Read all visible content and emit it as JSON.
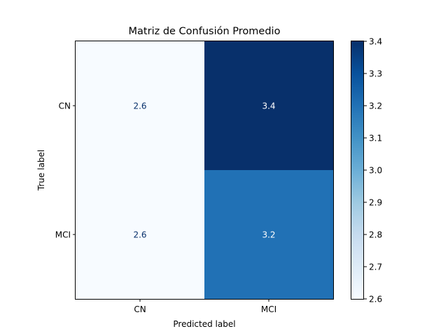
{
  "chart_data": {
    "type": "heatmap",
    "title": "Matriz de Confusión Promedio",
    "xlabel": "Predicted label",
    "ylabel": "True label",
    "x_categories": [
      "CN",
      "MCI"
    ],
    "y_categories": [
      "CN",
      "MCI"
    ],
    "values": [
      [
        2.6,
        3.4
      ],
      [
        2.6,
        3.2
      ]
    ],
    "value_labels": [
      [
        "2.6",
        "3.4"
      ],
      [
        "2.6",
        "3.2"
      ]
    ],
    "colorbar": {
      "min": 2.6,
      "max": 3.4,
      "ticks": [
        "2.6",
        "2.7",
        "2.8",
        "2.9",
        "3.0",
        "3.1",
        "3.2",
        "3.3",
        "3.4"
      ],
      "colormap": "Blues"
    },
    "colors": {
      "low": "#f7fbff",
      "high": "#08306b",
      "text_on_light": "#08306b",
      "text_on_dark": "#ffffff"
    }
  }
}
